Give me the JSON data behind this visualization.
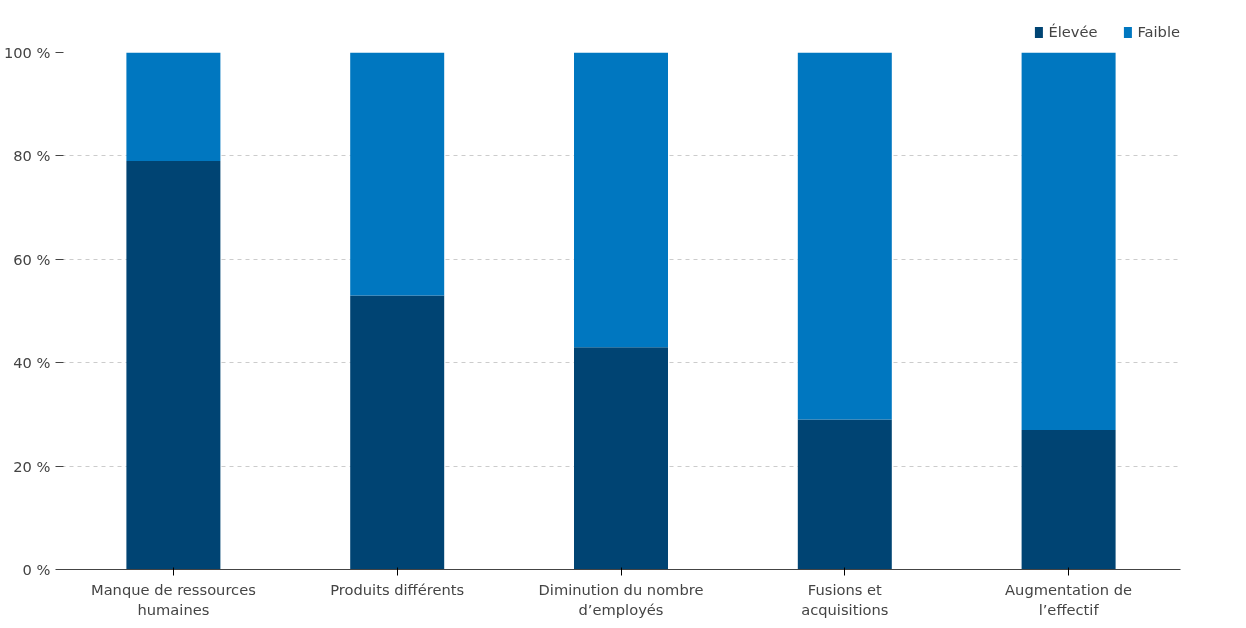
{
  "chart_data": {
    "type": "bar",
    "stacked": true,
    "categories": [
      "Manque de ressources humaines",
      "Produits différents",
      "Diminution du nombre d’employés",
      "Fusions et acquisitions",
      "Augmentation de l’effectif"
    ],
    "series": [
      {
        "name": "Élevée",
        "color": "#004473",
        "values": [
          79,
          53,
          43,
          29,
          27
        ]
      },
      {
        "name": "Faible",
        "color": "#0077c0",
        "values": [
          21,
          47,
          57,
          71,
          73
        ]
      }
    ],
    "ylim": [
      0,
      100
    ],
    "yticks": [
      {
        "value": 0,
        "label": "0 %"
      },
      {
        "value": 20,
        "label": "20 %"
      },
      {
        "value": 40,
        "label": "40 %"
      },
      {
        "value": 60,
        "label": "60 %"
      },
      {
        "value": 80,
        "label": "80 %"
      },
      {
        "value": 100,
        "label": "100 %"
      }
    ],
    "grid": "y",
    "legend": "top right"
  }
}
